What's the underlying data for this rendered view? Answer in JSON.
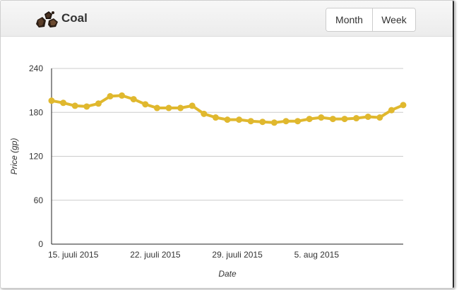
{
  "header": {
    "title": "Coal",
    "icon": "coal-icon",
    "range_buttons": {
      "month_label": "Month",
      "week_label": "Week"
    }
  },
  "colors": {
    "series": "#e0b82e",
    "gridline": "#cccccc",
    "axis": "#222222"
  },
  "chart_data": {
    "type": "line",
    "xlabel": "Date",
    "ylabel": "Price (gp)",
    "ylim": [
      0,
      240
    ],
    "yticks": [
      0,
      60,
      120,
      180,
      240
    ],
    "xtick_labels": [
      "15. juuli 2015",
      "22. juuli 2015",
      "29. juuli 2015",
      "5. aug 2015"
    ],
    "xtick_index": [
      0,
      7,
      14,
      21
    ],
    "grid": true,
    "legend": "none",
    "series": [
      {
        "values": [
          196,
          193,
          189,
          188,
          192,
          202,
          203,
          198,
          191,
          186,
          186,
          186,
          189,
          178,
          173,
          170,
          170,
          168,
          167,
          166,
          168,
          168,
          171,
          173,
          171,
          171,
          172,
          174,
          173,
          183,
          190
        ]
      }
    ]
  }
}
